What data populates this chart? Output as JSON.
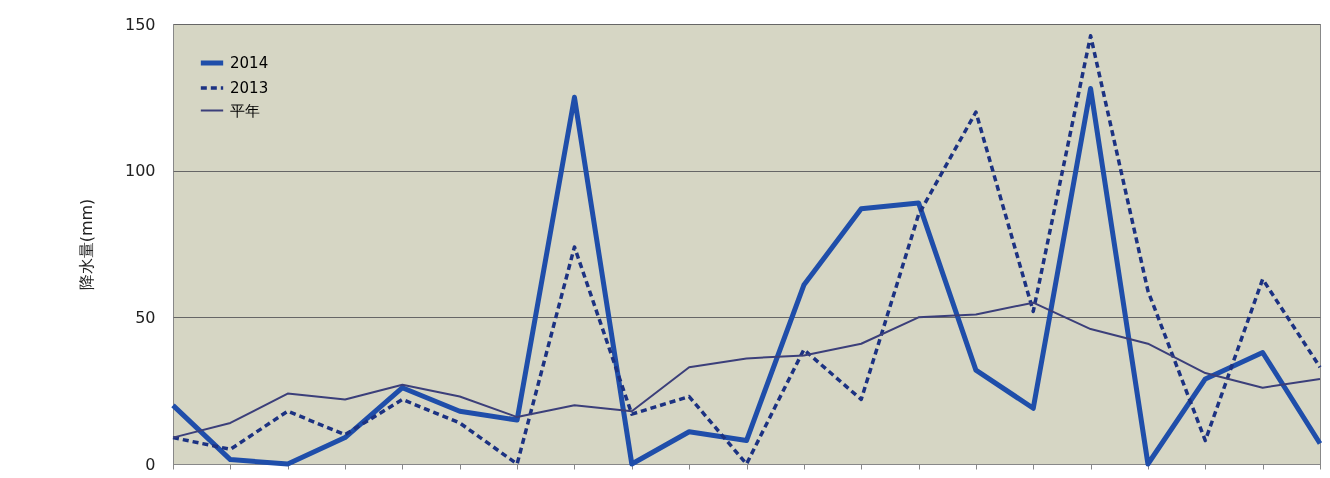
{
  "chart_data": {
    "type": "line",
    "ylabel": "降水量(mm)",
    "categories": [
      null,
      null,
      null,
      null,
      null,
      null,
      null,
      null,
      null,
      null,
      null,
      null,
      null,
      null,
      null,
      null,
      null,
      null,
      null,
      null,
      null
    ],
    "series": [
      {
        "name": "2014",
        "color": "#1f4eaa",
        "line_style": "solid",
        "values": [
          20,
          1.5,
          0,
          9,
          26,
          18,
          15,
          125,
          0,
          11,
          8,
          61,
          87,
          89,
          32,
          19,
          128,
          0,
          29,
          38,
          7
        ]
      },
      {
        "name": "2013",
        "color": "#1c3282",
        "line_style": "dashed",
        "values": [
          9,
          5,
          18,
          10,
          22,
          14,
          0,
          74,
          17,
          23,
          0,
          39,
          22,
          85,
          120,
          52,
          146,
          59,
          8,
          63,
          33
        ]
      },
      {
        "name": "平年",
        "color": "#3b3f7a",
        "line_style": "solid",
        "values": [
          9,
          14,
          24,
          22,
          27,
          23,
          16,
          20,
          18,
          33,
          36,
          37,
          41,
          50,
          51,
          55,
          46,
          41,
          31,
          26,
          29
        ]
      }
    ],
    "ylim": [
      0,
      150
    ],
    "yticks": [
      0,
      50,
      100,
      150
    ],
    "grid": "y",
    "legend": "top left",
    "tick_labels": "y"
  }
}
